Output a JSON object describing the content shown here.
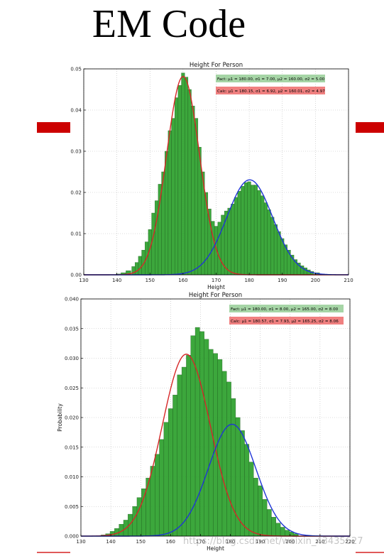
{
  "slide_title": "EM Code",
  "watermark": "https://blog.csdn.net/weixin_43435627",
  "colors": {
    "bar": "#2ca02c",
    "calc_curve_1": "#d62728",
    "calc_curve_2": "#1f35d6",
    "accent": "#cc0000",
    "fact_box": "#a6d5a6",
    "calc_box": "#f08080"
  },
  "chart_data": [
    {
      "type": "bar",
      "title": "Height For Person",
      "xlabel": "Height",
      "ylabel": "",
      "xlim": [
        130,
        210
      ],
      "ylim": [
        0,
        0.05
      ],
      "xticks": [
        "130",
        "140",
        "150",
        "160",
        "170",
        "180",
        "190",
        "200",
        "210"
      ],
      "yticks": [
        "0.00",
        "0.01",
        "0.02",
        "0.03",
        "0.04",
        "0.05"
      ],
      "grid": true,
      "legend_position": "top-right",
      "fact_label": "Fact: μ1 = 180.00, σ1 = 7.00, μ2 = 160.00, σ2 = 5.00",
      "calc_label": "Calc: μ1 = 180.15, σ1 = 6.92, μ2 = 160.01, σ2 = 4.97",
      "bins": [
        [
          140.5,
          0.0002
        ],
        [
          142.0,
          0.0005
        ],
        [
          143.5,
          0.001
        ],
        [
          145.0,
          0.002
        ],
        [
          146.0,
          0.003
        ],
        [
          147.0,
          0.0045
        ],
        [
          148.0,
          0.006
        ],
        [
          149.0,
          0.008
        ],
        [
          150.0,
          0.011
        ],
        [
          151.0,
          0.015
        ],
        [
          152.0,
          0.018
        ],
        [
          153.0,
          0.022
        ],
        [
          154.0,
          0.025
        ],
        [
          155.0,
          0.03
        ],
        [
          156.0,
          0.035
        ],
        [
          157.0,
          0.038
        ],
        [
          158.0,
          0.043
        ],
        [
          159.0,
          0.046
        ],
        [
          160.0,
          0.049
        ],
        [
          161.0,
          0.048
        ],
        [
          162.0,
          0.045
        ],
        [
          163.0,
          0.041
        ],
        [
          164.0,
          0.038
        ],
        [
          165.0,
          0.031
        ],
        [
          166.0,
          0.025
        ],
        [
          167.0,
          0.02
        ],
        [
          168.0,
          0.016
        ],
        [
          169.0,
          0.013
        ],
        [
          170.0,
          0.0118
        ],
        [
          171.0,
          0.0128
        ],
        [
          172.0,
          0.0145
        ],
        [
          173.0,
          0.0155
        ],
        [
          174.0,
          0.0162
        ],
        [
          175.0,
          0.0172
        ],
        [
          176.0,
          0.0188
        ],
        [
          177.0,
          0.0203
        ],
        [
          178.0,
          0.0215
        ],
        [
          179.0,
          0.0224
        ],
        [
          180.0,
          0.0226
        ],
        [
          181.0,
          0.0218
        ],
        [
          182.0,
          0.0218
        ],
        [
          183.0,
          0.0205
        ],
        [
          184.0,
          0.0192
        ],
        [
          185.0,
          0.0175
        ],
        [
          186.0,
          0.0158
        ],
        [
          187.0,
          0.014
        ],
        [
          188.0,
          0.0122
        ],
        [
          189.0,
          0.0105
        ],
        [
          190.0,
          0.0088
        ],
        [
          191.0,
          0.0073
        ],
        [
          192.0,
          0.006
        ],
        [
          193.0,
          0.0048
        ],
        [
          194.0,
          0.0037
        ],
        [
          195.0,
          0.0029
        ],
        [
          196.0,
          0.0022
        ],
        [
          197.0,
          0.0017
        ],
        [
          198.0,
          0.0012
        ],
        [
          199.0,
          0.0008
        ],
        [
          200.5,
          0.0005
        ],
        [
          202.0,
          0.0002
        ]
      ],
      "curves": [
        {
          "mu": 160.01,
          "sigma": 4.97,
          "weight": 0.6,
          "color": "#d62728"
        },
        {
          "mu": 180.15,
          "sigma": 6.92,
          "weight": 0.4,
          "color": "#1f35d6"
        }
      ]
    },
    {
      "type": "bar",
      "title": "Height For Person",
      "xlabel": "Height",
      "ylabel": "Probability",
      "xlim": [
        130,
        220
      ],
      "ylim": [
        0,
        0.04
      ],
      "xticks": [
        "130",
        "140",
        "150",
        "160",
        "170",
        "180",
        "190",
        "200",
        "210",
        "220"
      ],
      "yticks": [
        "0.000",
        "0.005",
        "0.010",
        "0.015",
        "0.020",
        "0.025",
        "0.030",
        "0.035",
        "0.040"
      ],
      "grid": true,
      "legend_position": "top-right",
      "fact_label": "Fact: μ1 = 180.00, σ1 = 8.00, μ2 = 165.00, σ2 = 8.00",
      "calc_label": "Calc: μ1 = 180.57, σ1 = 7.93, μ2 = 165.25, σ2 = 8.06",
      "bins": [
        [
          137.5,
          0.0002
        ],
        [
          139.0,
          0.0004
        ],
        [
          140.5,
          0.0008
        ],
        [
          142.0,
          0.0013
        ],
        [
          143.5,
          0.002
        ],
        [
          145.0,
          0.0027
        ],
        [
          146.5,
          0.0037
        ],
        [
          148.0,
          0.005
        ],
        [
          149.5,
          0.0065
        ],
        [
          151.0,
          0.008
        ],
        [
          152.5,
          0.0098
        ],
        [
          154.0,
          0.0118
        ],
        [
          155.5,
          0.0138
        ],
        [
          157.0,
          0.0163
        ],
        [
          158.5,
          0.0192
        ],
        [
          160.0,
          0.0215
        ],
        [
          161.5,
          0.0238
        ],
        [
          163.0,
          0.0272
        ],
        [
          164.5,
          0.0285
        ],
        [
          166.0,
          0.0305
        ],
        [
          167.5,
          0.0338
        ],
        [
          169.0,
          0.0352
        ],
        [
          170.5,
          0.0345
        ],
        [
          172.0,
          0.0332
        ],
        [
          173.5,
          0.0315
        ],
        [
          175.0,
          0.0308
        ],
        [
          176.5,
          0.0298
        ],
        [
          178.0,
          0.0278
        ],
        [
          179.5,
          0.026
        ],
        [
          181.0,
          0.0232
        ],
        [
          182.5,
          0.02
        ],
        [
          184.0,
          0.0178
        ],
        [
          185.5,
          0.0155
        ],
        [
          187.0,
          0.0125
        ],
        [
          188.5,
          0.0098
        ],
        [
          190.0,
          0.0085
        ],
        [
          191.5,
          0.0062
        ],
        [
          193.0,
          0.0045
        ],
        [
          194.5,
          0.0032
        ],
        [
          196.0,
          0.0022
        ],
        [
          197.5,
          0.0015
        ],
        [
          199.0,
          0.001
        ],
        [
          200.5,
          0.0007
        ],
        [
          202.0,
          0.0004
        ]
      ],
      "curves": [
        {
          "mu": 165.25,
          "sigma": 8.06,
          "weight": 0.62,
          "color": "#d62728"
        },
        {
          "mu": 180.57,
          "sigma": 7.93,
          "weight": 0.375,
          "color": "#1f35d6"
        }
      ]
    }
  ]
}
